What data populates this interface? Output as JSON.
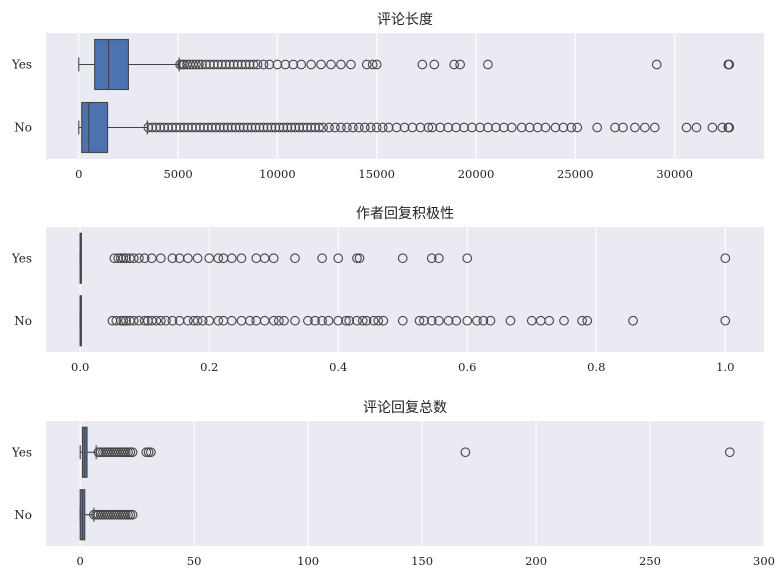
{
  "chart_data": [
    {
      "type": "boxplot",
      "title": "评论长度",
      "xlabel": "",
      "ylabel": "",
      "xlim": [
        -1650,
        34500
      ],
      "xticks": [
        0,
        5000,
        10000,
        15000,
        20000,
        25000,
        30000
      ],
      "grid": true,
      "categories": [
        "Yes",
        "No"
      ],
      "color": "#4c72b0",
      "boxes": [
        {
          "category": "Yes",
          "whisker_low": 0,
          "q1": 800,
          "median": 1500,
          "q3": 2500,
          "whisker_high": 5050,
          "outliers": [
            5100,
            5200,
            5300,
            5450,
            5600,
            5750,
            5900,
            6050,
            6200,
            6400,
            6600,
            6800,
            7000,
            7200,
            7400,
            7600,
            7800,
            8000,
            8200,
            8400,
            8600,
            8800,
            9000,
            9300,
            9600,
            10000,
            10400,
            10800,
            11200,
            11700,
            12200,
            12700,
            13200,
            13700,
            14500,
            14800,
            15000,
            17300,
            17900,
            18900,
            19200,
            20600,
            29100,
            32700,
            32750
          ]
        },
        {
          "category": "No",
          "whisker_low": 0,
          "q1": 150,
          "median": 500,
          "q3": 1450,
          "whisker_high": 3450,
          "outliers": [
            3500,
            3700,
            3900,
            4100,
            4300,
            4500,
            4700,
            4900,
            5100,
            5300,
            5500,
            5700,
            5900,
            6100,
            6300,
            6500,
            6700,
            6900,
            7100,
            7300,
            7500,
            7700,
            7900,
            8100,
            8300,
            8500,
            8700,
            8900,
            9100,
            9300,
            9500,
            9700,
            9900,
            10100,
            10300,
            10500,
            10700,
            10900,
            11100,
            11300,
            11500,
            11700,
            11900,
            12100,
            12300,
            12600,
            12900,
            13200,
            13500,
            13800,
            14100,
            14400,
            14700,
            15000,
            15300,
            15600,
            16000,
            16400,
            16800,
            17200,
            17600,
            17800,
            18200,
            18600,
            19000,
            19400,
            19800,
            20200,
            20600,
            21000,
            21400,
            21800,
            22300,
            22700,
            23100,
            23500,
            24000,
            24400,
            24800,
            25100,
            26100,
            27000,
            27400,
            28000,
            28500,
            29000,
            30600,
            31100,
            31900,
            32400,
            32700,
            32750
          ]
        }
      ]
    },
    {
      "type": "boxplot",
      "title": "作者回复积极性",
      "xlabel": "",
      "ylabel": "",
      "xlim": [
        -0.053,
        1.06
      ],
      "xticks": [
        0.0,
        0.2,
        0.4,
        0.6,
        0.8,
        1.0
      ],
      "grid": true,
      "categories": [
        "Yes",
        "No"
      ],
      "color": "#4c72b0",
      "boxes": [
        {
          "category": "Yes",
          "whisker_low": 0,
          "q1": 0,
          "median": 0,
          "q3": 0,
          "whisker_high": 0,
          "outliers": [
            0.053,
            0.059,
            0.063,
            0.067,
            0.071,
            0.077,
            0.083,
            0.091,
            0.1,
            0.111,
            0.125,
            0.143,
            0.154,
            0.167,
            0.182,
            0.2,
            0.214,
            0.222,
            0.235,
            0.25,
            0.273,
            0.286,
            0.3,
            0.333,
            0.375,
            0.4,
            0.429,
            0.433,
            0.5,
            0.545,
            0.556,
            0.6,
            1.0
          ]
        },
        {
          "category": "No",
          "whisker_low": 0,
          "q1": 0,
          "median": 0,
          "q3": 0,
          "whisker_high": 0,
          "outliers": [
            0.05,
            0.056,
            0.063,
            0.067,
            0.071,
            0.077,
            0.083,
            0.091,
            0.1,
            0.105,
            0.111,
            0.118,
            0.125,
            0.133,
            0.143,
            0.154,
            0.167,
            0.176,
            0.182,
            0.19,
            0.2,
            0.214,
            0.222,
            0.235,
            0.25,
            0.263,
            0.273,
            0.286,
            0.3,
            0.308,
            0.316,
            0.333,
            0.353,
            0.364,
            0.375,
            0.385,
            0.4,
            0.412,
            0.417,
            0.429,
            0.438,
            0.444,
            0.455,
            0.462,
            0.47,
            0.5,
            0.526,
            0.533,
            0.545,
            0.556,
            0.571,
            0.583,
            0.6,
            0.615,
            0.625,
            0.636,
            0.667,
            0.7,
            0.714,
            0.727,
            0.75,
            0.778,
            0.786,
            0.857,
            1.0
          ]
        }
      ]
    },
    {
      "type": "boxplot",
      "title": "评论回复总数",
      "xlabel": "",
      "ylabel": "",
      "xlim": [
        -15,
        300
      ],
      "xticks": [
        0,
        50,
        100,
        150,
        200,
        250,
        300
      ],
      "grid": true,
      "categories": [
        "Yes",
        "No"
      ],
      "color": "#4c72b0",
      "boxes": [
        {
          "category": "Yes",
          "whisker_low": 0,
          "q1": 1,
          "median": 2,
          "q3": 3,
          "whisker_high": 7,
          "outliers": [
            8,
            9,
            10,
            11,
            12,
            13,
            14,
            15,
            16,
            17,
            18,
            19,
            20,
            21,
            22,
            23,
            29,
            30,
            31,
            169,
            285
          ]
        },
        {
          "category": "No",
          "whisker_low": 0,
          "q1": 0,
          "median": 1,
          "q3": 2,
          "whisker_high": 6,
          "outliers": [
            6,
            7,
            8,
            9,
            10,
            11,
            12,
            13,
            14,
            15,
            16,
            17,
            18,
            19,
            20,
            21,
            22,
            23
          ]
        }
      ]
    }
  ]
}
